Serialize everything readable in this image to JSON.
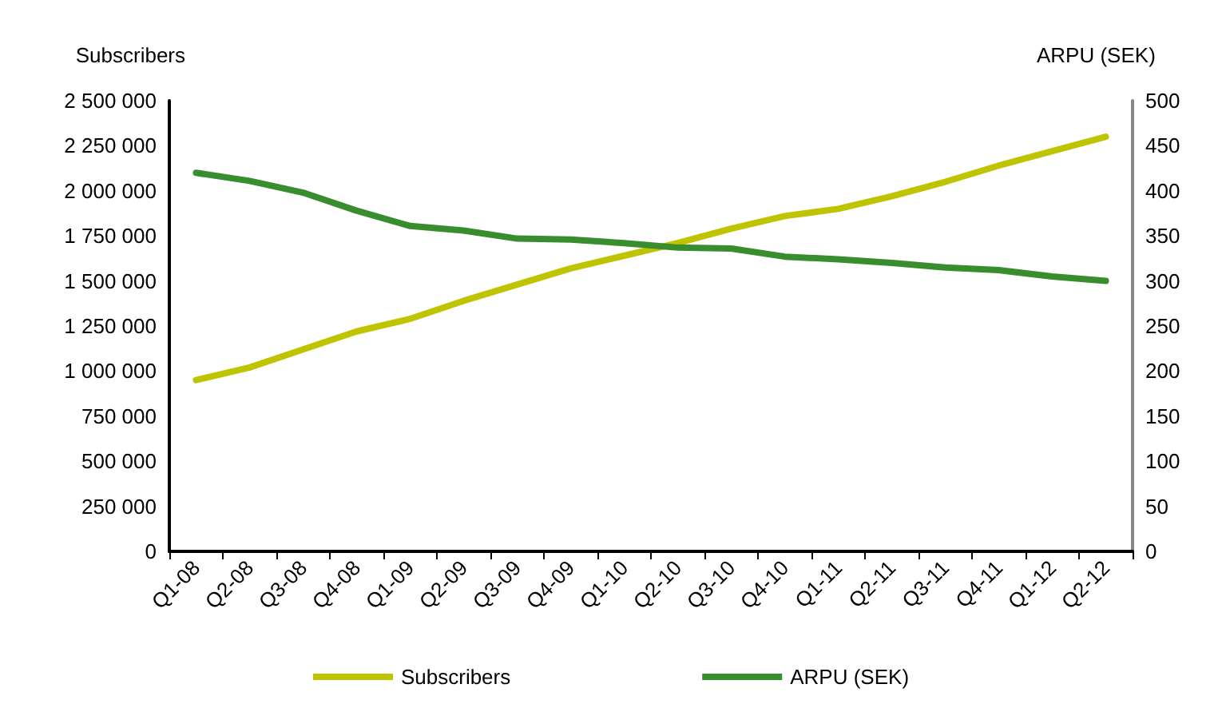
{
  "chart_data": {
    "type": "line",
    "ylabel": "Subscribers",
    "y2label": "ARPU (SEK)",
    "categories": [
      "Q1-08",
      "Q2-08",
      "Q3-08",
      "Q4-08",
      "Q1-09",
      "Q2-09",
      "Q3-09",
      "Q4-09",
      "Q1-10",
      "Q2-10",
      "Q3-10",
      "Q4-10",
      "Q1-11",
      "Q2-11",
      "Q3-11",
      "Q4-11",
      "Q1-12",
      "Q2-12"
    ],
    "series": [
      {
        "name": "Subscribers",
        "color": "#bfc400",
        "values": [
          950000,
          1020000,
          1120000,
          1220000,
          1290000,
          1390000,
          1480000,
          1570000,
          1640000,
          1710000,
          1790000,
          1860000,
          1900000,
          1970000,
          2050000,
          2140000,
          2220000,
          2300000
        ]
      },
      {
        "name": "ARPU (SEK)",
        "color": "#388e2e",
        "axis": "y2",
        "values": [
          420,
          411,
          398,
          378,
          361,
          356,
          347,
          346,
          342,
          337,
          336,
          327,
          324,
          320,
          315,
          312,
          305,
          300
        ]
      }
    ],
    "ylim": [
      0,
      2500000
    ],
    "yticks": [
      0,
      {
        "value": 250000,
        "label": "250 000"
      },
      {
        "value": 500000,
        "label": "500 000"
      },
      {
        "value": 750000,
        "label": "750 000"
      },
      {
        "value": 1000000,
        "label": "1 000 000"
      },
      {
        "value": 1250000,
        "label": "1 250 000"
      },
      {
        "value": 1500000,
        "label": "1 500 000"
      },
      {
        "value": 1750000,
        "label": "1 750 000"
      },
      {
        "value": 2000000,
        "label": "2 000 000"
      },
      {
        "value": 2250000,
        "label": "2 250 000"
      },
      {
        "value": 2500000,
        "label": "2 500 000"
      }
    ],
    "y2lim": [
      0,
      500
    ],
    "y2ticks": [
      0,
      50,
      100,
      150,
      200,
      250,
      300,
      350,
      400,
      450,
      500
    ],
    "grid": false,
    "legend": "bottom",
    "marker": "none",
    "line_style": "solid"
  }
}
